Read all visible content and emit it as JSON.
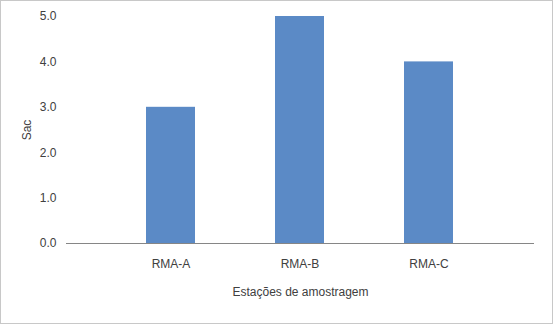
{
  "chart_data": {
    "type": "bar",
    "x_label": "Estações de amostragem",
    "y_label": "Sac",
    "categories": [
      "RMA-A",
      "RMA-B",
      "RMA-C"
    ],
    "values": [
      3,
      5,
      4
    ],
    "color": "#5b8ac6",
    "ylim": [
      0,
      5
    ],
    "yticks": [
      0,
      1,
      2,
      3,
      4,
      5
    ],
    "grid": false
  }
}
